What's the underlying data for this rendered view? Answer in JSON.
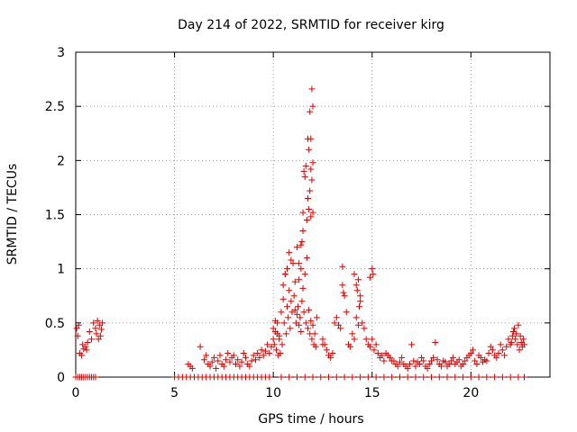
{
  "chart_data": {
    "type": "scatter",
    "title": "Day 214 of 2022, SRMTID for receiver kirg",
    "xlabel": "GPS time / hours",
    "ylabel": "SRMTID / TECUs",
    "xlim": [
      0,
      24
    ],
    "ylim": [
      0,
      3
    ],
    "xticks": [
      0,
      5,
      10,
      15,
      20
    ],
    "xtick_labels": [
      "0",
      "5",
      "10",
      "15",
      "20"
    ],
    "yticks": [
      0,
      0.5,
      1,
      1.5,
      2,
      2.5,
      3
    ],
    "ytick_labels": [
      "0",
      "0.5",
      "1",
      "1.5",
      "2",
      "2.5",
      "3"
    ],
    "grid": true,
    "series": [
      {
        "name": "SRMTID",
        "color": "#dd0000",
        "marker": "plus",
        "x": [
          0.05,
          0.1,
          0.15,
          0.2,
          0.3,
          0.35,
          0.4,
          0.5,
          0.55,
          0.6,
          0.7,
          0.8,
          0.9,
          1.0,
          1.05,
          1.1,
          1.15,
          1.2,
          1.25,
          1.3,
          1.35,
          0.0,
          0.1,
          0.2,
          0.3,
          0.4,
          0.5,
          0.6,
          0.7,
          0.8,
          0.9,
          1.0,
          5.7,
          5.8,
          5.9,
          6.3,
          6.5,
          6.6,
          6.7,
          6.8,
          6.9,
          7.0,
          7.1,
          7.2,
          7.3,
          7.4,
          7.5,
          7.6,
          7.7,
          7.8,
          7.9,
          8.0,
          8.1,
          8.2,
          8.3,
          8.4,
          8.5,
          8.6,
          8.7,
          8.8,
          8.9,
          9.0,
          9.1,
          9.2,
          9.3,
          9.4,
          9.5,
          9.6,
          9.7,
          9.8,
          9.9,
          10.0,
          10.1,
          10.2,
          10.3,
          5.0,
          5.2,
          5.4,
          5.6,
          5.8,
          6.0,
          6.2,
          6.4,
          6.6,
          6.8,
          7.0,
          7.2,
          7.4,
          7.6,
          7.8,
          8.0,
          8.2,
          8.4,
          8.6,
          8.8,
          9.0,
          9.2,
          9.4,
          9.6,
          9.8,
          10.0,
          10.05,
          10.1,
          10.15,
          10.2,
          10.25,
          10.3,
          10.35,
          10.4,
          10.45,
          10.5,
          10.55,
          10.6,
          10.65,
          10.7,
          10.75,
          10.8,
          10.85,
          10.9,
          10.95,
          11.0,
          11.05,
          11.1,
          11.15,
          11.2,
          11.25,
          11.3,
          11.35,
          11.4,
          11.45,
          11.5,
          11.55,
          11.6,
          11.65,
          11.7,
          11.75,
          11.8,
          11.85,
          11.9,
          11.95,
          12.0,
          12.05,
          12.1,
          12.15,
          11.5,
          11.55,
          11.7,
          11.75,
          11.8,
          11.85,
          11.9,
          11.95,
          12.0,
          11.9,
          12.0,
          11.8,
          11.9,
          12.0,
          11.95,
          11.85,
          11.75,
          11.65,
          11.6,
          11.5,
          11.45,
          11.4,
          11.3,
          10.6,
          10.5,
          10.7,
          10.8,
          10.9,
          11.1,
          11.2,
          11.3,
          11.4,
          12.2,
          12.5,
          12.5,
          12.6,
          12.7,
          12.8,
          12.9,
          13.0,
          13.1,
          13.2,
          13.3,
          13.4,
          13.5,
          13.6,
          13.7,
          13.8,
          13.9,
          14.0,
          14.1,
          14.2,
          14.3,
          14.4,
          14.5,
          14.6,
          14.7,
          14.8,
          14.9,
          15.0,
          15.1,
          15.2,
          15.3,
          15.4,
          15.5,
          15.6,
          15.7,
          15.8,
          15.9,
          16.0,
          13.5,
          13.55,
          14.1,
          14.2,
          14.3,
          14.4,
          14.9,
          15.0,
          15.05,
          14.25,
          14.35,
          16.1,
          16.2,
          16.3,
          16.4,
          16.5,
          16.6,
          16.7,
          16.8,
          16.9,
          17.0,
          17.1,
          17.2,
          17.3,
          17.4,
          17.5,
          17.6,
          17.7,
          17.8,
          17.9,
          18.0,
          18.1,
          18.2,
          18.3,
          18.4,
          18.5,
          18.6,
          18.7,
          18.8,
          18.9,
          19.0,
          19.1,
          19.2,
          19.3,
          19.4,
          19.5,
          19.6,
          19.7,
          19.8,
          19.9,
          20.0,
          20.1,
          20.2,
          20.3,
          20.4,
          20.5,
          20.6,
          20.7,
          20.8,
          20.9,
          21.0,
          21.1,
          21.2,
          21.3,
          21.4,
          21.5,
          21.6,
          21.7,
          21.8,
          21.9,
          22.0,
          22.05,
          22.1,
          22.15,
          22.2,
          22.25,
          22.3,
          22.35,
          22.4,
          22.45,
          22.5,
          22.55,
          22.6,
          22.65,
          22.7,
          10.4,
          10.8,
          11.2,
          11.6,
          12.0,
          12.4,
          12.8,
          13.2,
          13.6,
          14.0,
          14.4,
          14.8,
          15.2,
          15.6,
          16.0,
          16.4,
          16.8,
          17.2,
          17.6,
          18.0,
          18.4,
          18.8,
          19.2,
          19.6,
          20.0,
          20.4,
          20.8,
          21.2,
          21.6,
          22.0,
          22.4,
          22.7
        ],
        "y": [
          0.45,
          0.38,
          0.48,
          0.22,
          0.2,
          0.3,
          0.26,
          0.28,
          0.25,
          0.32,
          0.42,
          0.35,
          0.5,
          0.45,
          0.4,
          0.52,
          0.35,
          0.48,
          0.38,
          0.44,
          0.5,
          0,
          0,
          0,
          0,
          0,
          0,
          0,
          0,
          0,
          0,
          0,
          0.12,
          0.1,
          0.08,
          0.28,
          0.16,
          0.2,
          0.12,
          0.1,
          0.14,
          0.18,
          0.08,
          0.15,
          0.2,
          0.12,
          0.1,
          0.16,
          0.22,
          0.14,
          0.18,
          0.2,
          0.12,
          0.16,
          0.1,
          0.14,
          0.22,
          0.18,
          0.12,
          0.1,
          0.15,
          0.2,
          0.16,
          0.22,
          0.18,
          0.25,
          0.2,
          0.24,
          0.3,
          0.22,
          0.28,
          0.35,
          0.42,
          0.5,
          0.38,
          0,
          0,
          0,
          0,
          0,
          0,
          0,
          0,
          0,
          0,
          0,
          0,
          0,
          0,
          0,
          0,
          0,
          0,
          0,
          0,
          0,
          0,
          0,
          0,
          0,
          0.45,
          0.3,
          0.52,
          0.25,
          0.4,
          0.2,
          0.35,
          0.22,
          0.6,
          0.3,
          0.72,
          0.5,
          0.95,
          0.4,
          0.65,
          0.55,
          0.8,
          0.45,
          0.7,
          0.6,
          1.05,
          0.75,
          0.88,
          0.5,
          1.2,
          0.65,
          0.9,
          0.55,
          1.0,
          0.7,
          0.82,
          0.6,
          0.95,
          0.5,
          1.1,
          0.45,
          0.62,
          0.4,
          0.52,
          0.35,
          0.48,
          0.3,
          0.4,
          0.28,
          1.52,
          1.9,
          1.45,
          1.65,
          1.55,
          1.72,
          1.48,
          1.82,
          1.52,
          1.92,
          1.98,
          2.1,
          2.2,
          2.5,
          2.66,
          2.45,
          2.2,
          1.95,
          1.85,
          1.35,
          1.25,
          1.22,
          1.05,
          0.95,
          0.85,
          1.0,
          1.15,
          1.08,
          0.62,
          0.58,
          0.48,
          0.42,
          0.55,
          0.3,
          0.35,
          0.3,
          0.25,
          0.2,
          0.18,
          0.22,
          0.5,
          0.55,
          0.48,
          0.45,
          1.02,
          0.75,
          0.6,
          0.3,
          0.28,
          0.4,
          0.35,
          0.55,
          0.48,
          0.7,
          0.5,
          0.45,
          0.35,
          0.3,
          0.28,
          0.35,
          0.25,
          0.3,
          0.22,
          0.18,
          0.2,
          0.15,
          0.22,
          0.2,
          0.18,
          0.15,
          0.85,
          0.78,
          0.95,
          0.85,
          0.9,
          0.75,
          0.92,
          1.0,
          0.95,
          0.8,
          0.65,
          0.15,
          0.12,
          0.1,
          0.14,
          0.18,
          0.12,
          0.1,
          0.08,
          0.12,
          0.3,
          0.15,
          0.1,
          0.14,
          0.12,
          0.18,
          0.15,
          0.1,
          0.08,
          0.12,
          0.15,
          0.18,
          0.32,
          0.16,
          0.12,
          0.1,
          0.15,
          0.14,
          0.1,
          0.12,
          0.15,
          0.18,
          0.12,
          0.14,
          0.16,
          0.1,
          0.12,
          0.15,
          0.18,
          0.2,
          0.22,
          0.25,
          0.15,
          0.12,
          0.2,
          0.18,
          0.14,
          0.16,
          0.15,
          0.22,
          0.28,
          0.25,
          0.2,
          0.18,
          0.22,
          0.3,
          0.25,
          0.2,
          0.28,
          0.35,
          0.3,
          0.32,
          0.38,
          0.42,
          0.45,
          0.35,
          0.4,
          0.3,
          0.48,
          0.25,
          0.38,
          0.32,
          0.28,
          0.35,
          0.3,
          0,
          0,
          0,
          0,
          0,
          0,
          0,
          0,
          0,
          0,
          0,
          0,
          0,
          0,
          0,
          0,
          0,
          0,
          0,
          0,
          0,
          0,
          0,
          0,
          0,
          0,
          0,
          0,
          0,
          0,
          0,
          0
        ]
      }
    ]
  }
}
